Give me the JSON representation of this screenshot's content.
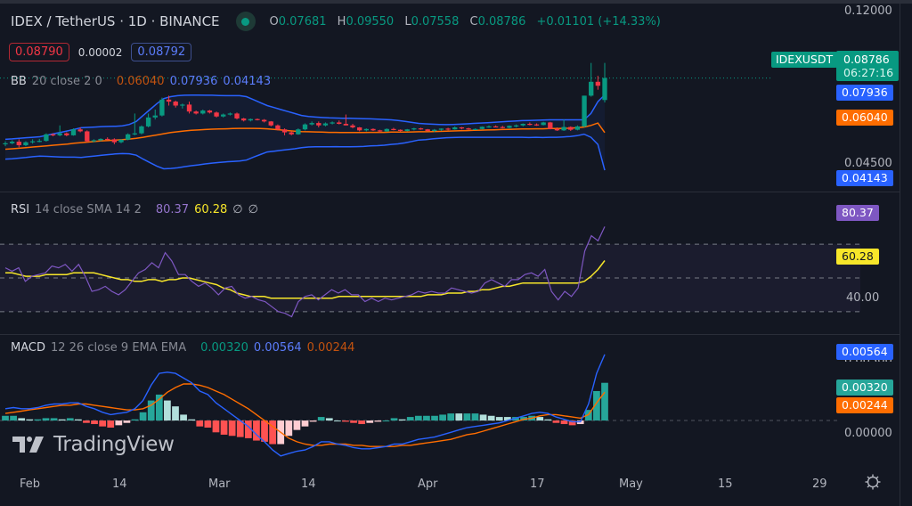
{
  "header": {
    "symbol_title": "IDEX / TetherUS · 1D · BINANCE",
    "status": "market-open",
    "ohlc": {
      "o_label": "O",
      "o": "0.07681",
      "h_label": "H",
      "h": "0.09550",
      "l_label": "L",
      "l": "0.07558",
      "c_label": "C",
      "c": "0.08786",
      "change": "+0.01101 (+14.33%)"
    },
    "sell_price": "0.08790",
    "spread": "0.00002",
    "buy_price": "0.08792"
  },
  "indicators": {
    "bb": {
      "name": "BB",
      "args": "20 close 2 0",
      "basis": "0.06040",
      "upper": "0.07936",
      "lower": "0.04143"
    },
    "rsi": {
      "name": "RSI",
      "args": "14 close SMA 14 2",
      "value": "80.37",
      "sma": "60.28",
      "extra1": "∅",
      "extra2": "∅"
    },
    "macd": {
      "name": "MACD",
      "args": "12 26 close 9 EMA EMA",
      "hist": "0.00320",
      "macd": "0.00564",
      "signal": "0.00244"
    }
  },
  "price_axis": {
    "ticks": [
      "0.12000",
      "0.04500"
    ],
    "symbol_tag": "IDEXUSDT",
    "last_price": "0.08786",
    "countdown": "06:27:16",
    "bb_upper_tag": "0.07936",
    "bb_basis_tag": "0.06040",
    "bb_lower_tag": "0.04143"
  },
  "rsi_axis": {
    "ticks": [
      "40.00"
    ],
    "rsi_tag": "80.37",
    "sma_tag": "60.28"
  },
  "macd_axis": {
    "ticks": [
      "0.00500",
      "0.00000"
    ],
    "macd_tag": "0.00564",
    "hist_tag": "0.00320",
    "signal_tag": "0.00244"
  },
  "time_axis": {
    "labels": [
      "Feb",
      "14",
      "Mar",
      "14",
      "Apr",
      "17",
      "May",
      "15",
      "29"
    ]
  },
  "watermark": "TradingView",
  "colors": {
    "up": "#089981",
    "down": "#f23645",
    "bb_band": "#2962ff",
    "bb_basis": "#ff6d00",
    "rsi": "#7e57c2",
    "rsi_sma": "#f7e62a",
    "macd": "#2962ff",
    "signal": "#ff6d00",
    "hist_up_strong": "#26a69a",
    "hist_up_weak": "#b2dfdb",
    "hist_down_strong": "#ff5252",
    "hist_down_weak": "#ffcdd2"
  },
  "chart_data": {
    "type": "candlestick",
    "title": "IDEX / TetherUS · 1D · BINANCE",
    "x_range": [
      "late Jan",
      "Apr 26"
    ],
    "price_range": [
      0.03,
      0.125
    ],
    "candles": [
      [
        0.0545,
        0.056,
        0.0535,
        0.055
      ],
      [
        0.055,
        0.0565,
        0.0545,
        0.0558
      ],
      [
        0.0558,
        0.057,
        0.053,
        0.054
      ],
      [
        0.054,
        0.056,
        0.0535,
        0.0555
      ],
      [
        0.0555,
        0.057,
        0.0548,
        0.056
      ],
      [
        0.056,
        0.0572,
        0.0555,
        0.0562
      ],
      [
        0.0562,
        0.06,
        0.0558,
        0.0595
      ],
      [
        0.0595,
        0.06,
        0.0585,
        0.059
      ],
      [
        0.059,
        0.064,
        0.0585,
        0.06
      ],
      [
        0.06,
        0.0605,
        0.0585,
        0.059
      ],
      [
        0.059,
        0.0625,
        0.0588,
        0.062
      ],
      [
        0.062,
        0.063,
        0.0605,
        0.061
      ],
      [
        0.061,
        0.0615,
        0.0555,
        0.056
      ],
      [
        0.056,
        0.057,
        0.0555,
        0.0565
      ],
      [
        0.0565,
        0.0575,
        0.056,
        0.0572
      ],
      [
        0.0572,
        0.058,
        0.0565,
        0.057
      ],
      [
        0.057,
        0.0575,
        0.0545,
        0.0555
      ],
      [
        0.0555,
        0.057,
        0.055,
        0.0568
      ],
      [
        0.0568,
        0.06,
        0.0565,
        0.0595
      ],
      [
        0.0595,
        0.07,
        0.059,
        0.06
      ],
      [
        0.06,
        0.064,
        0.0595,
        0.0635
      ],
      [
        0.0635,
        0.07,
        0.063,
        0.068
      ],
      [
        0.068,
        0.072,
        0.067,
        0.069
      ],
      [
        0.069,
        0.078,
        0.0685,
        0.077
      ],
      [
        0.077,
        0.079,
        0.074,
        0.076
      ],
      [
        0.076,
        0.0765,
        0.073,
        0.074
      ],
      [
        0.074,
        0.075,
        0.0725,
        0.0745
      ],
      [
        0.0745,
        0.076,
        0.07,
        0.071
      ],
      [
        0.071,
        0.0715,
        0.0695,
        0.07
      ],
      [
        0.07,
        0.072,
        0.0695,
        0.0715
      ],
      [
        0.0715,
        0.0718,
        0.07,
        0.0705
      ],
      [
        0.0705,
        0.071,
        0.068,
        0.0685
      ],
      [
        0.0685,
        0.07,
        0.068,
        0.0695
      ],
      [
        0.0695,
        0.0705,
        0.069,
        0.07
      ],
      [
        0.07,
        0.0705,
        0.067,
        0.0675
      ],
      [
        0.0675,
        0.0678,
        0.066,
        0.0665
      ],
      [
        0.0665,
        0.0675,
        0.066,
        0.0672
      ],
      [
        0.0672,
        0.0675,
        0.0665,
        0.0668
      ],
      [
        0.0668,
        0.0672,
        0.0655,
        0.066
      ],
      [
        0.066,
        0.0662,
        0.0635,
        0.064
      ],
      [
        0.064,
        0.0645,
        0.0615,
        0.062
      ],
      [
        0.062,
        0.0625,
        0.059,
        0.0605
      ],
      [
        0.0605,
        0.061,
        0.059,
        0.0595
      ],
      [
        0.0595,
        0.0625,
        0.0593,
        0.062
      ],
      [
        0.062,
        0.065,
        0.0615,
        0.0645
      ],
      [
        0.0645,
        0.066,
        0.064,
        0.0652
      ],
      [
        0.0652,
        0.066,
        0.063,
        0.064
      ],
      [
        0.064,
        0.0655,
        0.0635,
        0.065
      ],
      [
        0.065,
        0.066,
        0.0645,
        0.0655
      ],
      [
        0.0655,
        0.0665,
        0.0645,
        0.0648
      ],
      [
        0.0648,
        0.0695,
        0.064,
        0.064
      ],
      [
        0.064,
        0.0648,
        0.0625,
        0.063
      ],
      [
        0.063,
        0.0632,
        0.061,
        0.0615
      ],
      [
        0.0615,
        0.0625,
        0.061,
        0.0622
      ],
      [
        0.0622,
        0.0625,
        0.0612,
        0.0615
      ],
      [
        0.0615,
        0.0618,
        0.0605,
        0.061
      ],
      [
        0.061,
        0.0625,
        0.0608,
        0.0622
      ],
      [
        0.0622,
        0.0628,
        0.0615,
        0.0618
      ],
      [
        0.0618,
        0.062,
        0.0608,
        0.0612
      ],
      [
        0.0612,
        0.0622,
        0.061,
        0.062
      ],
      [
        0.062,
        0.0628,
        0.0615,
        0.0625
      ],
      [
        0.0625,
        0.0628,
        0.0618,
        0.062
      ],
      [
        0.062,
        0.0622,
        0.061,
        0.0612
      ],
      [
        0.0612,
        0.0622,
        0.0605,
        0.0618
      ],
      [
        0.0618,
        0.0625,
        0.0612,
        0.0624
      ],
      [
        0.0624,
        0.0628,
        0.0615,
        0.062
      ],
      [
        0.062,
        0.0635,
        0.0618,
        0.063
      ],
      [
        0.063,
        0.0632,
        0.062,
        0.0625
      ],
      [
        0.0625,
        0.0628,
        0.0618,
        0.062
      ],
      [
        0.062,
        0.0625,
        0.0618,
        0.0622
      ],
      [
        0.0622,
        0.0635,
        0.062,
        0.0633
      ],
      [
        0.0633,
        0.064,
        0.0628,
        0.0635
      ],
      [
        0.0635,
        0.064,
        0.063,
        0.0632
      ],
      [
        0.0632,
        0.0638,
        0.0625,
        0.0628
      ],
      [
        0.0628,
        0.064,
        0.0625,
        0.0638
      ],
      [
        0.0638,
        0.0645,
        0.063,
        0.064
      ],
      [
        0.064,
        0.065,
        0.0635,
        0.0648
      ],
      [
        0.0648,
        0.0655,
        0.064,
        0.0645
      ],
      [
        0.0645,
        0.065,
        0.0638,
        0.0642
      ],
      [
        0.0642,
        0.0658,
        0.064,
        0.0655
      ],
      [
        0.0655,
        0.0658,
        0.062,
        0.0622
      ],
      [
        0.0622,
        0.063,
        0.0612,
        0.0615
      ],
      [
        0.0615,
        0.067,
        0.0612,
        0.0632
      ],
      [
        0.0632,
        0.0635,
        0.0612,
        0.0618
      ],
      [
        0.0618,
        0.064,
        0.0615,
        0.0635
      ],
      [
        0.0635,
        0.079,
        0.063,
        0.079
      ],
      [
        0.079,
        0.0955,
        0.0785,
        0.086
      ],
      [
        0.086,
        0.089,
        0.082,
        0.084
      ],
      [
        0.0768,
        0.0955,
        0.0756,
        0.0879
      ]
    ],
    "bb_upper": [
      0.057,
      0.0572,
      0.0575,
      0.0578,
      0.058,
      0.0583,
      0.059,
      0.0598,
      0.0605,
      0.0612,
      0.062,
      0.0628,
      0.063,
      0.0632,
      0.0634,
      0.0635,
      0.0636,
      0.0638,
      0.0645,
      0.066,
      0.069,
      0.072,
      0.075,
      0.0775,
      0.0785,
      0.079,
      0.0792,
      0.0793,
      0.0793,
      0.0792,
      0.0792,
      0.0791,
      0.079,
      0.079,
      0.079,
      0.0785,
      0.077,
      0.0755,
      0.074,
      0.073,
      0.072,
      0.071,
      0.07,
      0.069,
      0.0685,
      0.0682,
      0.068,
      0.0678,
      0.0677,
      0.0676,
      0.0676,
      0.0675,
      0.0674,
      0.0673,
      0.0672,
      0.067,
      0.0668,
      0.0665,
      0.066,
      0.0655,
      0.065,
      0.0648,
      0.0646,
      0.0645,
      0.0644,
      0.0645,
      0.0646,
      0.0648,
      0.065,
      0.0652,
      0.0654,
      0.0656,
      0.0658,
      0.066,
      0.0662,
      0.0664,
      0.0665,
      0.0666,
      0.0667,
      0.0668,
      0.0668,
      0.0668,
      0.0668,
      0.0668,
      0.0668,
      0.07,
      0.076,
      0.0794
    ],
    "bb_basis": [
      0.052,
      0.0522,
      0.0525,
      0.0528,
      0.0531,
      0.0534,
      0.0537,
      0.054,
      0.0543,
      0.0546,
      0.055,
      0.0553,
      0.0556,
      0.0559,
      0.0562,
      0.0564,
      0.0566,
      0.0568,
      0.0571,
      0.0575,
      0.058,
      0.0586,
      0.0592,
      0.0598,
      0.0604,
      0.0608,
      0.0612,
      0.0615,
      0.0617,
      0.0619,
      0.0621,
      0.0622,
      0.0623,
      0.0624,
      0.0625,
      0.0625,
      0.0625,
      0.0624,
      0.0623,
      0.062,
      0.0617,
      0.0614,
      0.0611,
      0.0609,
      0.0608,
      0.0607,
      0.0606,
      0.0605,
      0.0605,
      0.0604,
      0.0604,
      0.0604,
      0.0604,
      0.0605,
      0.0605,
      0.0605,
      0.0606,
      0.0606,
      0.0606,
      0.0607,
      0.0608,
      0.0608,
      0.0609,
      0.061,
      0.0611,
      0.0612,
      0.0613,
      0.0614,
      0.0615,
      0.0616,
      0.0617,
      0.0618,
      0.0619,
      0.062,
      0.0621,
      0.0622,
      0.0622,
      0.0623,
      0.0623,
      0.0624,
      0.0624,
      0.0625,
      0.0626,
      0.0628,
      0.0632,
      0.064,
      0.0652,
      0.0604
    ],
    "bb_lower": [
      0.047,
      0.0472,
      0.0475,
      0.0478,
      0.0482,
      0.0485,
      0.0484,
      0.0482,
      0.0481,
      0.048,
      0.048,
      0.0478,
      0.0482,
      0.0486,
      0.049,
      0.0493,
      0.0496,
      0.0498,
      0.0497,
      0.049,
      0.047,
      0.0452,
      0.0434,
      0.0421,
      0.0423,
      0.0426,
      0.0432,
      0.0437,
      0.0441,
      0.0446,
      0.045,
      0.0453,
      0.0456,
      0.0458,
      0.046,
      0.0465,
      0.048,
      0.0493,
      0.0506,
      0.051,
      0.0514,
      0.0518,
      0.0522,
      0.0528,
      0.0531,
      0.0532,
      0.0532,
      0.0532,
      0.0533,
      0.0532,
      0.0532,
      0.0533,
      0.0534,
      0.0537,
      0.0538,
      0.054,
      0.0544,
      0.0547,
      0.0552,
      0.0559,
      0.0566,
      0.0568,
      0.0572,
      0.0575,
      0.0578,
      0.0579,
      0.058,
      0.058,
      0.058,
      0.058,
      0.058,
      0.058,
      0.058,
      0.058,
      0.058,
      0.058,
      0.0579,
      0.058,
      0.0579,
      0.058,
      0.058,
      0.0582,
      0.0584,
      0.0588,
      0.0596,
      0.058,
      0.0544,
      0.0414
    ],
    "rsi": [
      56,
      54,
      56,
      48,
      51,
      52,
      53,
      57,
      56,
      58,
      54,
      58,
      51,
      42,
      43,
      45,
      42,
      40,
      43,
      48,
      53,
      55,
      59,
      56,
      65,
      60,
      52,
      52,
      48,
      45,
      47,
      44,
      40,
      44,
      45,
      40,
      38,
      39,
      37,
      36,
      33,
      30,
      29,
      27,
      36,
      39,
      40,
      37,
      40,
      43,
      41,
      43,
      40,
      40,
      36,
      38,
      36,
      38,
      37,
      38,
      39,
      40,
      42,
      41,
      42,
      41,
      41,
      44,
      43,
      42,
      41,
      42,
      47,
      49,
      47,
      45,
      49,
      49,
      52,
      53,
      51,
      55,
      42,
      37,
      42,
      39,
      44,
      66,
      75,
      72,
      80.4
    ],
    "rsi_sma": [
      53,
      53,
      52,
      51,
      51,
      51,
      52,
      52,
      52,
      52,
      53,
      53,
      53,
      53,
      52,
      51,
      50,
      49,
      49,
      48,
      48,
      49,
      49,
      48,
      49,
      49,
      50,
      50,
      49,
      48,
      47,
      46,
      44,
      43,
      41,
      40,
      39,
      39,
      39,
      38,
      38,
      38,
      38,
      38,
      38,
      38,
      38,
      38,
      38,
      39,
      39,
      39,
      39,
      39,
      39,
      39,
      39,
      39,
      39,
      39,
      39,
      39,
      40,
      40,
      40,
      41,
      41,
      41,
      42,
      42,
      43,
      43,
      44,
      45,
      45,
      46,
      47,
      47,
      47,
      47,
      47,
      47,
      47,
      47,
      47,
      48,
      51,
      55,
      60.3
    ],
    "rsi_levels": {
      "upper": 70,
      "middle": 50,
      "lower": 30
    },
    "rsi_range": [
      22,
      88
    ],
    "macd": [
      0.001,
      0.0011,
      0.001,
      0.001,
      0.0011,
      0.0013,
      0.0014,
      0.0014,
      0.0015,
      0.0015,
      0.0012,
      0.001,
      0.0007,
      0.0005,
      0.0006,
      0.0007,
      0.001,
      0.0017,
      0.003,
      0.004,
      0.0041,
      0.004,
      0.0036,
      0.0032,
      0.0025,
      0.0022,
      0.0015,
      0.001,
      0.0005,
      0.0,
      -0.0005,
      -0.0012,
      -0.0018,
      -0.0025,
      -0.003,
      -0.0028,
      -0.0026,
      -0.0025,
      -0.0022,
      -0.0018,
      -0.0018,
      -0.002,
      -0.0021,
      -0.0023,
      -0.0024,
      -0.0024,
      -0.0023,
      -0.0022,
      -0.002,
      -0.002,
      -0.0018,
      -0.0016,
      -0.0015,
      -0.0014,
      -0.0012,
      -0.001,
      -0.0008,
      -0.0006,
      -0.0005,
      -0.0004,
      -0.0003,
      -0.0002,
      0.0,
      0.0002,
      0.0004,
      0.0006,
      0.0007,
      0.0006,
      0.0003,
      0.0001,
      -0.0001,
      -0.0001,
      0.0014,
      0.004,
      0.0056
    ],
    "signal": [
      0.0006,
      0.0007,
      0.0008,
      0.0009,
      0.001,
      0.0011,
      0.0012,
      0.0013,
      0.0013,
      0.0014,
      0.0014,
      0.0013,
      0.0012,
      0.0011,
      0.001,
      0.0009,
      0.0009,
      0.001,
      0.0013,
      0.0018,
      0.0024,
      0.0028,
      0.0031,
      0.0031,
      0.003,
      0.0028,
      0.0025,
      0.0022,
      0.0018,
      0.0014,
      0.001,
      0.0005,
      0.0,
      -0.0005,
      -0.001,
      -0.0015,
      -0.0018,
      -0.002,
      -0.0021,
      -0.0021,
      -0.002,
      -0.002,
      -0.002,
      -0.0021,
      -0.0021,
      -0.0022,
      -0.0022,
      -0.0022,
      -0.0022,
      -0.0021,
      -0.0021,
      -0.002,
      -0.0019,
      -0.0018,
      -0.0017,
      -0.0016,
      -0.0014,
      -0.0012,
      -0.0011,
      -0.0009,
      -0.0007,
      -0.0005,
      -0.0003,
      -0.0001,
      0.0001,
      0.0002,
      0.0004,
      0.0005,
      0.0005,
      0.0004,
      0.0003,
      0.0002,
      0.0005,
      0.0015,
      0.0024
    ],
    "histogram_last": 0.0032,
    "macd_range": [
      -0.004,
      0.0062
    ]
  }
}
